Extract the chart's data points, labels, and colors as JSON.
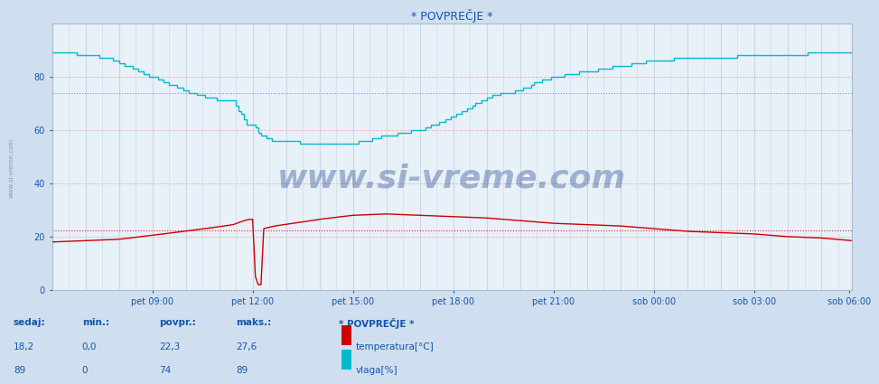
{
  "title": "* POVPREČJE *",
  "bg_color": "#d0dff0",
  "plot_bg_color": "#e8f0f8",
  "xlabel": "",
  "ylabel": "",
  "ylim": [
    0,
    100
  ],
  "xlim": [
    0,
    287
  ],
  "tick_labels_x": [
    "pet 09:00",
    "pet 12:00",
    "pet 15:00",
    "pet 18:00",
    "pet 21:00",
    "sob 00:00",
    "sob 03:00",
    "sob 06:00"
  ],
  "tick_positions_x": [
    36,
    72,
    108,
    144,
    180,
    216,
    252,
    286
  ],
  "tick_labels_y": [
    "0",
    "20",
    "40",
    "60",
    "80"
  ],
  "tick_positions_y": [
    0,
    20,
    40,
    60,
    80
  ],
  "avg_temp": 22.3,
  "avg_humidity": 74,
  "temp_color": "#cc0000",
  "humidity_color": "#00bbcc",
  "vgrid_color": "#c8d8e8",
  "hgrid_color_major": "#ddbbbb",
  "watermark": "www.si-vreme.com",
  "watermark_color": "#1a3a88",
  "legend_title": "* POVPREČJE *",
  "legend_color": "#1155aa",
  "footer_labels": [
    "sedaj:",
    "min.:",
    "povpr.:",
    "maks.:"
  ],
  "footer_temp": [
    "18,2",
    "0,0",
    "22,3",
    "27,6"
  ],
  "footer_hum": [
    "89",
    "0",
    "74",
    "89"
  ],
  "footer_series_temp": "temperatura[°C]",
  "footer_series_hum": "vlaga[%]",
  "n_points": 288
}
